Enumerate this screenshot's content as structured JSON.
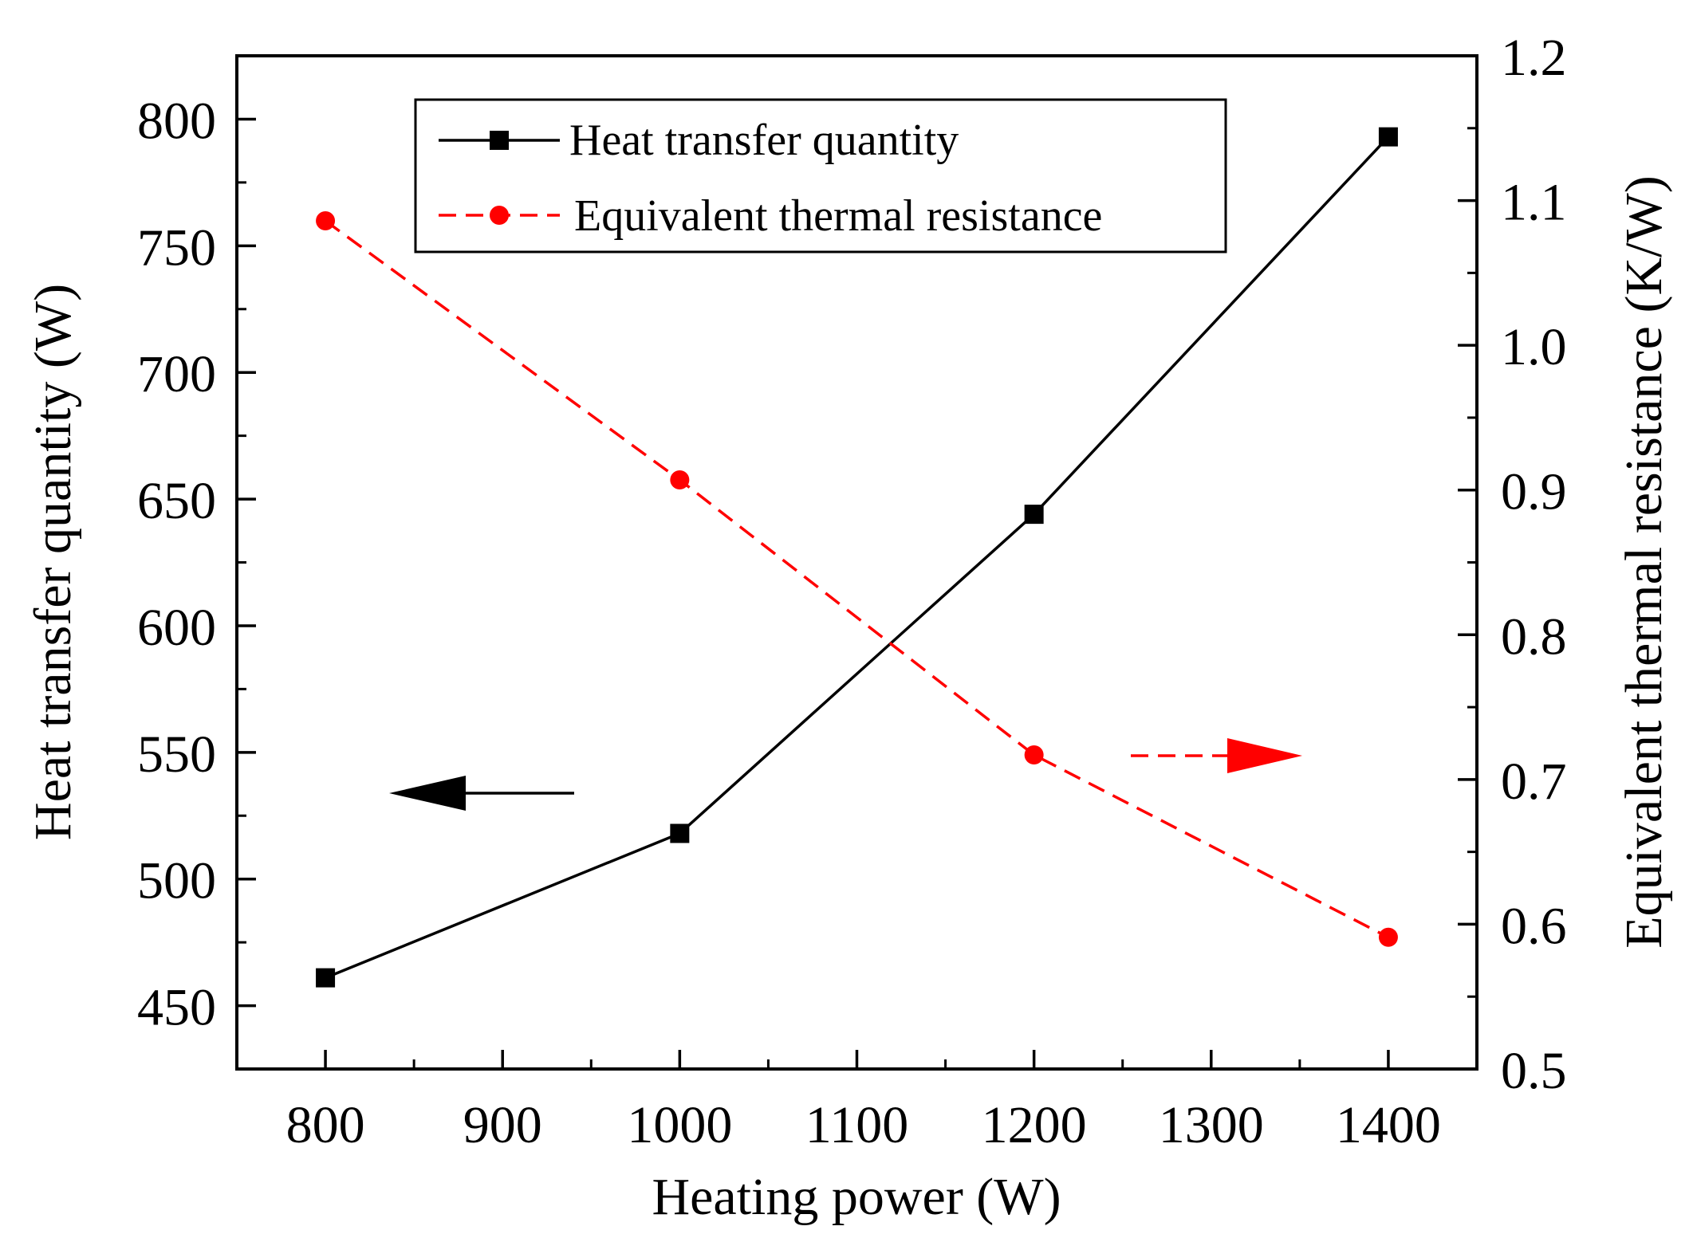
{
  "chart_data": {
    "type": "line",
    "title": "",
    "xlabel": "Heating power (W)",
    "ylabel_left": "Heat transfer quantity (W)",
    "ylabel_right": "Equivalent thermal resistance (K/W)",
    "xlim": [
      750,
      1450
    ],
    "ylim_left": [
      425,
      825
    ],
    "ylim_right": [
      0.5,
      1.2
    ],
    "x_ticks": [
      "800",
      "900",
      "1000",
      "1100",
      "1200",
      "1300",
      "1400"
    ],
    "y_left_ticks": [
      "450",
      "500",
      "550",
      "600",
      "650",
      "700",
      "750",
      "800"
    ],
    "y_right_ticks": [
      "0.5",
      "0.6",
      "0.7",
      "0.8",
      "0.9",
      "1.0",
      "1.1",
      "1.2"
    ],
    "grid": false,
    "legend_position": "top-center",
    "x": [
      800,
      1000,
      1200,
      1400
    ],
    "series": [
      {
        "name": "Heat transfer quantity",
        "axis": "left",
        "values": [
          461,
          518,
          644,
          793
        ],
        "color": "#000000",
        "line_style": "solid",
        "marker": "square"
      },
      {
        "name": "Equivalent thermal resistance",
        "axis": "right",
        "values": [
          1.086,
          0.907,
          0.717,
          0.591
        ],
        "color": "#ff0000",
        "line_style": "dashed",
        "marker": "circle"
      }
    ],
    "annotations": [
      {
        "type": "arrow",
        "direction": "left",
        "indicates": "left-axis",
        "color": "#000000"
      },
      {
        "type": "arrow",
        "direction": "right",
        "indicates": "right-axis",
        "color": "#ff0000"
      }
    ]
  }
}
